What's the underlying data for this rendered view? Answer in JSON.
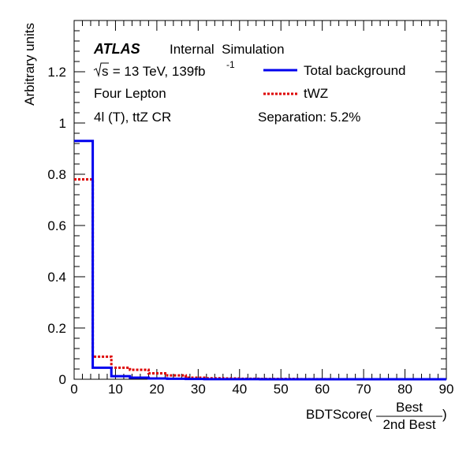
{
  "chart_data": {
    "type": "line",
    "title": "",
    "xlabel_main": "BDTScore(",
    "xlabel_num": "Best",
    "xlabel_den": "2nd Best",
    "xlabel_close": ")",
    "ylabel": "Arbitrary units",
    "xlim": [
      0,
      90
    ],
    "ylim": [
      0,
      1.4
    ],
    "grid": false,
    "legend_position": "top-right",
    "x_ticks": [
      0,
      10,
      20,
      30,
      40,
      50,
      60,
      70,
      80,
      90
    ],
    "y_ticks": [
      0,
      0.2,
      0.4,
      0.6,
      0.8,
      1,
      1.2
    ],
    "x_tick_labels": [
      "0",
      "10",
      "20",
      "30",
      "40",
      "50",
      "60",
      "70",
      "80",
      "90"
    ],
    "y_tick_labels": [
      "0",
      "0.2",
      "0.4",
      "0.6",
      "0.8",
      "1",
      "1.2"
    ],
    "bin_edges": [
      0,
      4.5,
      9,
      13.5,
      18,
      22.5,
      27,
      31.5,
      36,
      40.5,
      45,
      49.5,
      54,
      58.5,
      63,
      67.5,
      72,
      76.5,
      81,
      85.5,
      90
    ],
    "series": [
      {
        "name": "Total background",
        "color": "#0000ee",
        "style": "solid",
        "values": [
          0.93,
          0.045,
          0.012,
          0.006,
          0.003,
          0.002,
          0.001,
          0.0005,
          0.0003,
          0.0002,
          0.0001,
          0.0001,
          0,
          0,
          0,
          0,
          0,
          0,
          0,
          0
        ]
      },
      {
        "name": "tWZ",
        "color": "#dd0000",
        "style": "dotted",
        "values": [
          0.78,
          0.088,
          0.045,
          0.037,
          0.023,
          0.015,
          0.006,
          0.004,
          0.003,
          0.002,
          0.001,
          0.001,
          0.0005,
          0.0003,
          0,
          0,
          0,
          0,
          0,
          0
        ]
      }
    ],
    "annotations": {
      "atlas": "ATLAS",
      "status": "Internal  Simulation",
      "sqrt_s": "s",
      "energy_lumi": " = 13 TeV, 139fb",
      "lumi_exp": "-1",
      "channel": "Four Lepton",
      "region": "4l (T), ttZ CR",
      "separation": "Separation: 5.2%"
    }
  }
}
